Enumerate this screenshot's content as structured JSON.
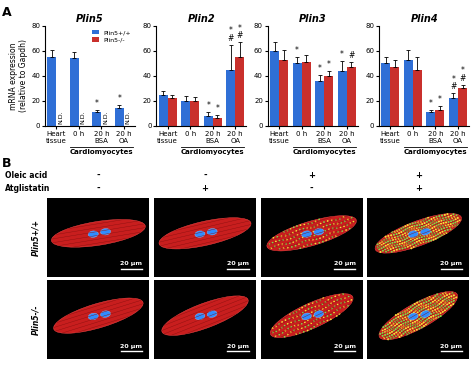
{
  "chart_data": [
    {
      "type": "bar",
      "panel_label": "A",
      "title": "Plin5",
      "y_label": "mRNA expression\n(relative to Gapdh)",
      "legend": "upper right",
      "categories": [
        "Heart\ntissue",
        "0 h",
        "20 h\nBSA",
        "20 h\nOA"
      ],
      "group": {
        "label": "Cardiomyocytes",
        "categories": [
          "0 h",
          "20 h\nBSA",
          "20 h\nOA"
        ]
      },
      "ylim": [
        0,
        80
      ],
      "yticks": [
        0,
        20,
        40,
        60,
        80
      ],
      "series": [
        {
          "name": "Plin5+/+",
          "color": "#2f6fd6",
          "values": [
            55,
            54,
            11,
            14
          ],
          "errors": [
            6,
            5,
            2,
            3
          ],
          "significance": [
            null,
            null,
            "*",
            "*"
          ]
        },
        {
          "name": "Plin5-/-",
          "color": "#c9302c",
          "values": [
            null,
            null,
            null,
            null
          ],
          "errors": [
            null,
            null,
            null,
            null
          ],
          "significance": [
            null,
            null,
            null,
            null
          ],
          "value_labels": [
            "N.D.",
            "N.D.",
            "N.D.",
            "N.D."
          ]
        }
      ]
    },
    {
      "type": "bar",
      "title": "Plin2",
      "categories": [
        "Heart\ntissue",
        "0 h",
        "20 h\nBSA",
        "20 h\nOA"
      ],
      "group": {
        "label": "Cardiomyocytes",
        "categories": [
          "0 h",
          "20 h\nBSA",
          "20 h\nOA"
        ]
      },
      "ylim": [
        0,
        80
      ],
      "yticks": [
        0,
        20,
        40,
        60,
        80
      ],
      "series": [
        {
          "name": "Plin5+/+",
          "color": "#2f6fd6",
          "values": [
            25,
            20,
            8,
            45
          ],
          "errors": [
            3,
            4,
            3,
            20
          ],
          "significance": [
            null,
            null,
            "*",
            "*\n#"
          ]
        },
        {
          "name": "Plin5-/-",
          "color": "#c9302c",
          "values": [
            22,
            20,
            6,
            55
          ],
          "errors": [
            3,
            3,
            3,
            12
          ],
          "significance": [
            null,
            null,
            "*",
            "*\n#"
          ]
        }
      ]
    },
    {
      "type": "bar",
      "title": "Plin3",
      "categories": [
        "Heart\ntissue",
        "0 h",
        "20 h\nBSA",
        "20 h\nOA"
      ],
      "group": {
        "label": "Cardiomyocytes",
        "categories": [
          "0 h",
          "20 h\nBSA",
          "20 h\nOA"
        ]
      },
      "ylim": [
        0,
        80
      ],
      "yticks": [
        0,
        20,
        40,
        60,
        80
      ],
      "series": [
        {
          "name": "Plin5+/+",
          "color": "#2f6fd6",
          "values": [
            60,
            50,
            36,
            44
          ],
          "errors": [
            7,
            5,
            5,
            8
          ],
          "significance": [
            null,
            "*",
            "*",
            "*"
          ]
        },
        {
          "name": "Plin5-/-",
          "color": "#c9302c",
          "values": [
            53,
            51,
            40,
            47
          ],
          "errors": [
            8,
            6,
            4,
            4
          ],
          "significance": [
            null,
            null,
            "*",
            "#"
          ]
        }
      ]
    },
    {
      "type": "bar",
      "title": "Plin4",
      "categories": [
        "Heart\ntissue",
        "0 h",
        "20 h\nBSA",
        "20 h\nOA"
      ],
      "group": {
        "label": "Cardiomyocytes",
        "categories": [
          "0 h",
          "20 h\nBSA",
          "20 h\nOA"
        ]
      },
      "ylim": [
        0,
        80
      ],
      "yticks": [
        0,
        20,
        40,
        60,
        80
      ],
      "series": [
        {
          "name": "Plin5+/+",
          "color": "#2f6fd6",
          "values": [
            50,
            53,
            11,
            22
          ],
          "errors": [
            5,
            8,
            2,
            4
          ],
          "significance": [
            null,
            null,
            "*",
            "*\n#"
          ]
        },
        {
          "name": "Plin5-/-",
          "color": "#c9302c",
          "values": [
            47,
            45,
            13,
            30
          ],
          "errors": [
            6,
            10,
            3,
            3
          ],
          "significance": [
            null,
            null,
            "*",
            "*\n#"
          ]
        }
      ]
    }
  ],
  "micrographs": {
    "panel_label": "B",
    "conditions": [
      {
        "name": "Oleic acid",
        "values": [
          "-",
          "-",
          "+",
          "+"
        ]
      },
      {
        "name": "Atglistatin",
        "values": [
          "-",
          "+",
          "-",
          "+"
        ]
      }
    ],
    "rows": [
      "Plin5+/+",
      "Plin5-/-"
    ],
    "scale_bar": "20 µm"
  }
}
